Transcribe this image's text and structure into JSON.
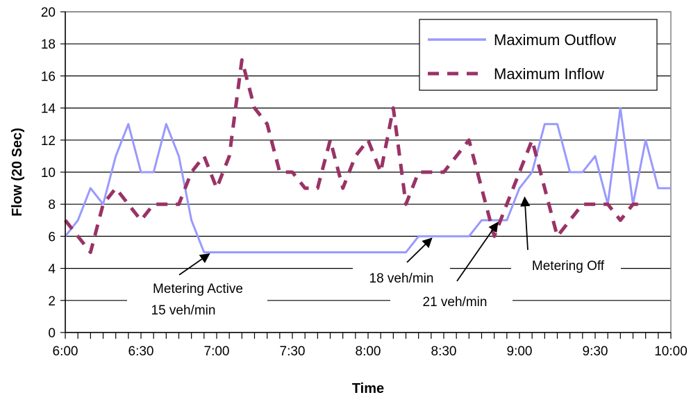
{
  "chart_data": {
    "type": "line",
    "xlabel": "Time",
    "ylabel": "Flow (20 Sec)",
    "ylim": [
      0,
      20
    ],
    "yticks": [
      0,
      2,
      4,
      6,
      8,
      10,
      12,
      14,
      16,
      18,
      20
    ],
    "x_tick_labels": [
      "6:00",
      "6:30",
      "7:00",
      "7:30",
      "8:00",
      "8:30",
      "9:00",
      "9:30",
      "10:00"
    ],
    "xlim_minutes_after_6": [
      0,
      240
    ],
    "grid": "horizontal",
    "legend_position": "top-right",
    "series": [
      {
        "name": "Maximum Outflow",
        "color": "#9999ff",
        "style": "solid",
        "x": [
          "6:00",
          "6:05",
          "6:10",
          "6:15",
          "6:20",
          "6:25",
          "6:30",
          "6:35",
          "6:40",
          "6:45",
          "6:50",
          "6:55",
          "7:00",
          "7:10",
          "7:20",
          "7:30",
          "7:40",
          "7:50",
          "8:00",
          "8:10",
          "8:15",
          "8:20",
          "8:25",
          "8:30",
          "8:35",
          "8:40",
          "8:45",
          "8:50",
          "8:55",
          "9:00",
          "9:05",
          "9:10",
          "9:15",
          "9:20",
          "9:25",
          "9:30",
          "9:35",
          "9:40",
          "9:45",
          "9:50",
          "9:55",
          "10:00"
        ],
        "values": [
          6,
          7,
          9,
          8,
          11,
          13,
          10,
          10,
          13,
          11,
          7,
          5,
          5,
          5,
          5,
          5,
          5,
          5,
          5,
          5,
          5,
          6,
          6,
          6,
          6,
          6,
          7,
          7,
          7,
          9,
          10,
          13,
          13,
          10,
          10,
          11,
          8,
          14,
          8,
          12,
          9,
          9
        ]
      },
      {
        "name": "Maximum Inflow",
        "color": "#993366",
        "style": "dashed",
        "x": [
          "6:00",
          "6:05",
          "6:10",
          "6:15",
          "6:20",
          "6:25",
          "6:30",
          "6:35",
          "6:40",
          "6:45",
          "6:50",
          "6:55",
          "7:00",
          "7:05",
          "7:10",
          "7:15",
          "7:20",
          "7:25",
          "7:30",
          "7:35",
          "7:40",
          "7:45",
          "7:50",
          "7:55",
          "8:00",
          "8:05",
          "8:10",
          "8:15",
          "8:20",
          "8:25",
          "8:30",
          "8:35",
          "8:40",
          "8:45",
          "8:50",
          "8:55",
          "9:00",
          "9:05",
          "9:10",
          "9:15",
          "9:20",
          "9:25",
          "9:30",
          "9:35",
          "9:40",
          "9:45",
          "9:50"
        ],
        "values": [
          7,
          6,
          5,
          8,
          9,
          8,
          7,
          8,
          8,
          8,
          10,
          11,
          9,
          11,
          17,
          14,
          13,
          10,
          10,
          9,
          9,
          12,
          9,
          11,
          12,
          10,
          14,
          8,
          10,
          10,
          10,
          11,
          12,
          9,
          6,
          8,
          10,
          12,
          9,
          6,
          7,
          8,
          8,
          8,
          7,
          8,
          8
        ]
      }
    ],
    "annotations": [
      {
        "text": [
          "Metering Active",
          "15 veh/min"
        ],
        "at": "6:58",
        "value": 5
      },
      {
        "text": [
          "18 veh/min"
        ],
        "at": "8:26",
        "value": 6
      },
      {
        "text": [
          "21 veh/min"
        ],
        "at": "8:52",
        "value": 7
      },
      {
        "text": [
          "Metering Off"
        ],
        "at": "9:02",
        "value": 8.6
      }
    ]
  }
}
